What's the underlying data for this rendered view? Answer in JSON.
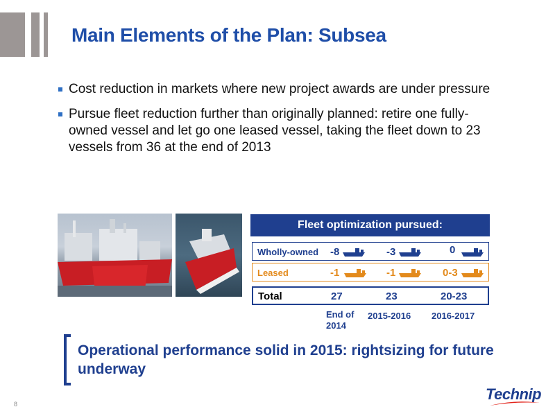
{
  "colors": {
    "brand_blue": "#1f3f8f",
    "title_blue": "#1f4ea8",
    "leased_orange": "#e38a1c",
    "logo_red": "#e2231a",
    "deco_gray": "#9c9695"
  },
  "title": "Main Elements of the Plan: Subsea",
  "bullets": [
    "Cost reduction in markets where new project awards are under pressure",
    "Pursue fleet reduction further than originally planned: retire one fully-owned vessel and let go one leased vessel, taking the fleet down to 23 vessels from 36 at the end of 2013"
  ],
  "fleet": {
    "header": "Fleet optimization pursued:",
    "wholly_owned": {
      "label": "Wholly-owned",
      "values": [
        "-8",
        "-3",
        "0"
      ],
      "icon": "ship-icon"
    },
    "leased": {
      "label": "Leased",
      "values": [
        "-1",
        "-1",
        "0-3"
      ],
      "icon": "ship-icon"
    },
    "total": {
      "label": "Total",
      "values": [
        "27",
        "23",
        "20-23"
      ]
    },
    "periods": [
      "End of 2014",
      "2015-2016",
      "2016-2017"
    ]
  },
  "callout": "Operational performance solid in 2015: rightsizing for future underway",
  "page_number": "8",
  "logo": "Technip"
}
